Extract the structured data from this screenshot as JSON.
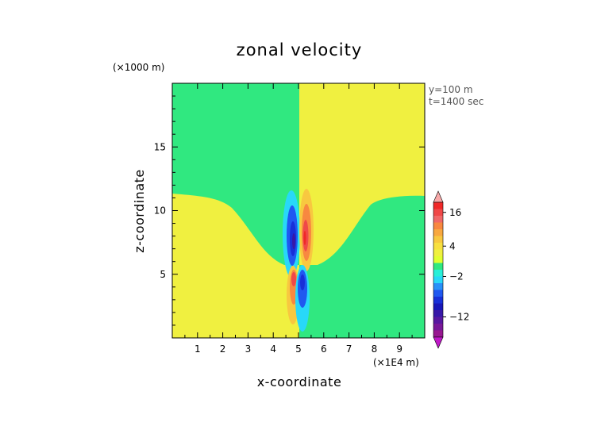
{
  "chart_data": {
    "type": "heatmap",
    "title": "zonal velocity",
    "xlabel": "x-coordinate",
    "ylabel": "z-coordinate",
    "x_unit": "(×1E4 m)",
    "y_unit": "(×1000 m)",
    "xlim": [
      0,
      10
    ],
    "ylim": [
      0,
      20
    ],
    "x_ticks": [
      "1",
      "2",
      "3",
      "4",
      "5",
      "6",
      "7",
      "8",
      "9"
    ],
    "y_ticks": [
      "5",
      "10",
      "15"
    ],
    "annotations": [
      "y=100 m",
      "t=1400 sec"
    ],
    "colorbar": {
      "tick_labels": [
        "16",
        "4",
        "−2",
        "−12"
      ],
      "colors": [
        "#f8a8a8",
        "#f02828",
        "#f04848",
        "#f06868",
        "#f88840",
        "#f8a840",
        "#f8c840",
        "#f8e040",
        "#f0f040",
        "#e0ff30",
        "#30e880",
        "#28f0d8",
        "#28d8f8",
        "#2890f8",
        "#2058f0",
        "#1830d8",
        "#1818b8",
        "#3818a8",
        "#5818a0",
        "#781898",
        "#981890",
        "#c018c8"
      ]
    },
    "regions": {
      "upper_left": "#30e880",
      "upper_right": "#f0f040",
      "lower_left": "#f0f040",
      "lower_right": "#30e880"
    }
  }
}
